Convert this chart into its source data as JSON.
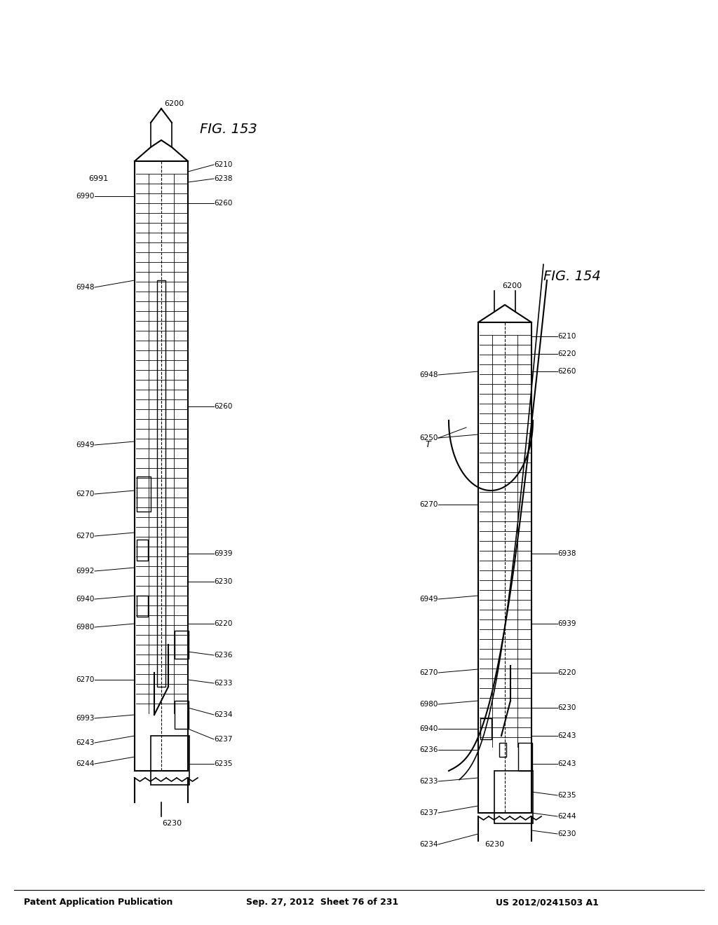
{
  "title_left": "Patent Application Publication",
  "title_mid": "Sep. 27, 2012  Sheet 76 of 231",
  "title_right": "US 2012/0241503 A1",
  "fig153_label": "FIG. 153",
  "fig154_label": "FIG. 154",
  "background_color": "#ffffff",
  "line_color": "#000000",
  "fig153_refs": [
    "6230",
    "6244",
    "6243",
    "6993",
    "6270",
    "6980",
    "6940",
    "6992",
    "6270",
    "6270",
    "6949",
    "6948",
    "6990",
    "6991",
    "6200",
    "6210",
    "6238",
    "6260",
    "6260",
    "6233",
    "6234",
    "6237",
    "6235",
    "6220",
    "6236",
    "6230",
    "6939",
    "6260"
  ],
  "fig154_refs": [
    "6230",
    "6234",
    "6237",
    "6233",
    "6236",
    "6940",
    "6980",
    "6270",
    "6949",
    "6270",
    "6250",
    "6948",
    "6200",
    "6210",
    "6260",
    "6220",
    "6220",
    "6938",
    "6939",
    "6220",
    "6230",
    "6243",
    "6243",
    "6244",
    "6235",
    "6230",
    "T"
  ]
}
